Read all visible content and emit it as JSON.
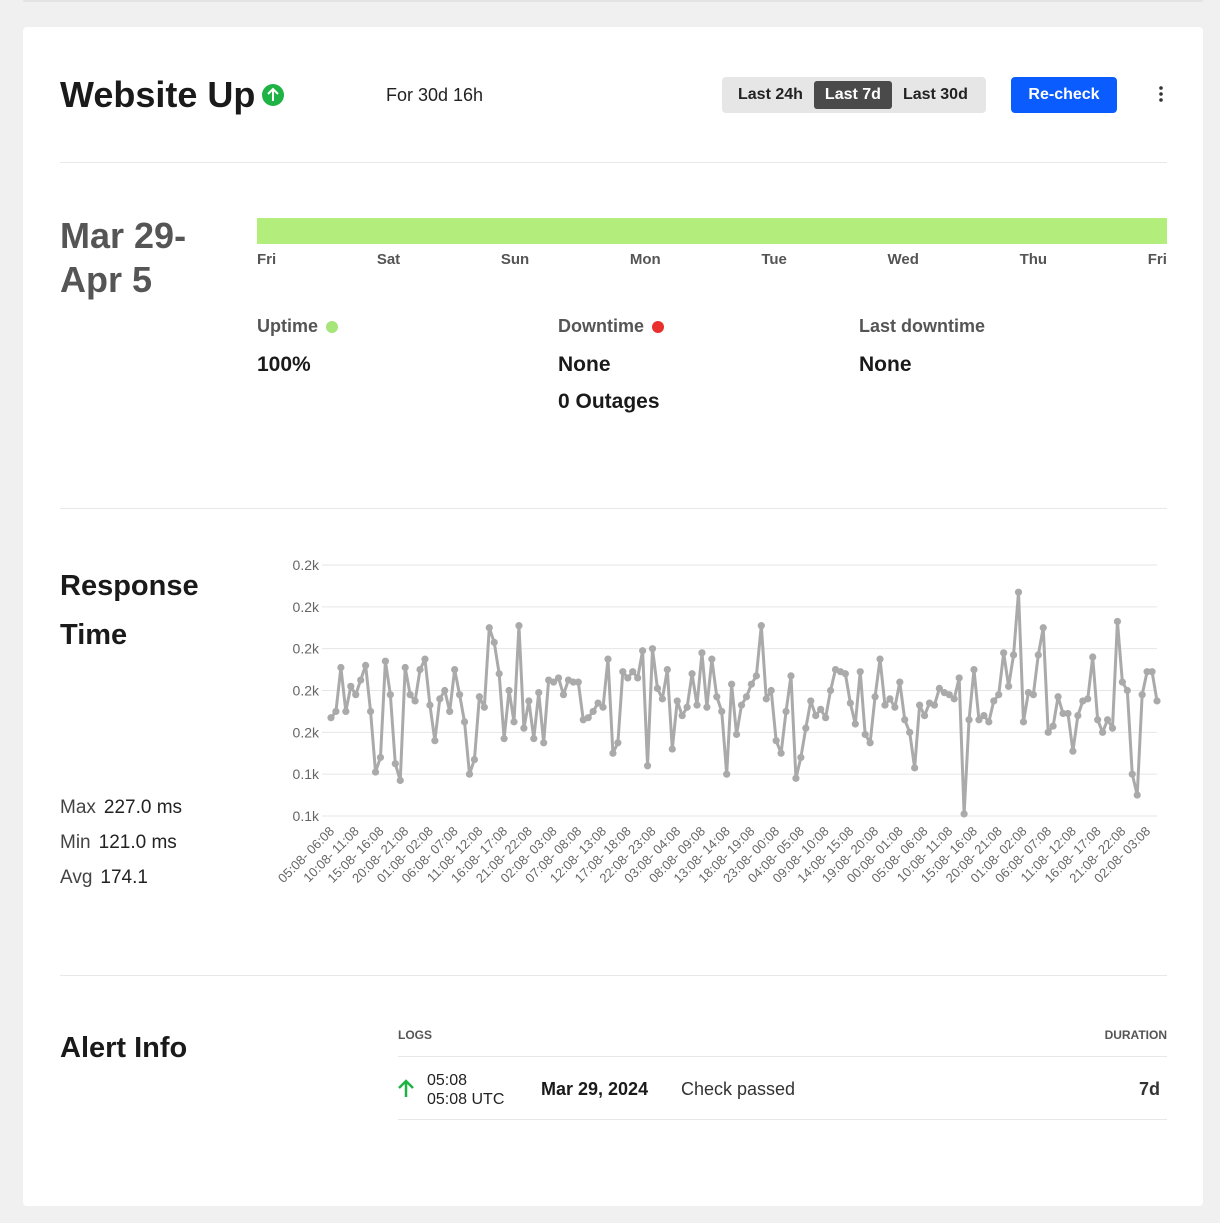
{
  "header": {
    "title": "Website Up",
    "status_for": "For 30d 16h",
    "ranges": [
      "Last 24h",
      "Last 7d",
      "Last 30d"
    ],
    "selected_range": 1,
    "button": "Re-check"
  },
  "uptime": {
    "date_range": [
      "Mar 29-",
      "Apr 5"
    ],
    "bar_color": "#b3ee7c",
    "days": [
      "Fri",
      "Sat",
      "Sun",
      "Mon",
      "Tue",
      "Wed",
      "Thu",
      "Fri"
    ],
    "stats": [
      {
        "label": "Uptime",
        "color": "#a6e57a",
        "values": [
          "100%"
        ]
      },
      {
        "label": "Downtime",
        "color": "#e8302d",
        "values": [
          "None",
          "0 Outages"
        ]
      },
      {
        "label": "Last downtime",
        "values": [
          "None"
        ]
      }
    ]
  },
  "response": {
    "title": [
      "Response",
      "Time"
    ],
    "summary": [
      {
        "label": "Max",
        "value": "227.0 ms"
      },
      {
        "label": "Min",
        "value": "121.0 ms"
      },
      {
        "label": "Avg",
        "value": "174.1"
      }
    ]
  },
  "chart_data": {
    "type": "line",
    "color": "#aaaaaa",
    "grid": true,
    "ylim": [
      120,
      240
    ],
    "yticks": [
      {
        "value": 120,
        "label": "0.1k"
      },
      {
        "value": 140,
        "label": "0.1k"
      },
      {
        "value": 160,
        "label": "0.2k"
      },
      {
        "value": 180,
        "label": "0.2k"
      },
      {
        "value": 200,
        "label": "0.2k"
      },
      {
        "value": 220,
        "label": "0.2k"
      },
      {
        "value": 240,
        "label": "0.2k"
      }
    ],
    "categories": [
      "05:08- 06:08",
      null,
      null,
      null,
      null,
      "10:08- 11:08",
      null,
      null,
      null,
      null,
      "15:08- 16:08",
      null,
      null,
      null,
      null,
      "20:08- 21:08",
      null,
      null,
      null,
      null,
      "01:08- 02:08",
      null,
      null,
      null,
      null,
      "06:08- 07:08",
      null,
      null,
      null,
      null,
      "11:08- 12:08",
      null,
      null,
      null,
      null,
      "16:08- 17:08",
      null,
      null,
      null,
      null,
      "21:08- 22:08",
      null,
      null,
      null,
      null,
      "02:08- 03:08",
      null,
      null,
      null,
      null,
      "07:08- 08:08",
      null,
      null,
      null,
      null,
      "12:08- 13:08",
      null,
      null,
      null,
      null,
      "17:08- 18:08",
      null,
      null,
      null,
      null,
      "22:08- 23:08",
      null,
      null,
      null,
      null,
      "03:08- 04:08",
      null,
      null,
      null,
      null,
      "08:08- 09:08",
      null,
      null,
      null,
      null,
      "13:08- 14:08",
      null,
      null,
      null,
      null,
      "18:08- 19:08",
      null,
      null,
      null,
      null,
      "23:08- 00:08",
      null,
      null,
      null,
      null,
      "04:08- 05:08",
      null,
      null,
      null,
      null,
      "09:08- 10:08",
      null,
      null,
      null,
      null,
      "14:08- 15:08",
      null,
      null,
      null,
      null,
      "19:08- 20:08",
      null,
      null,
      null,
      null,
      "00:08- 01:08",
      null,
      null,
      null,
      null,
      "05:08- 06:08",
      null,
      null,
      null,
      null,
      "10:08- 11:08",
      null,
      null,
      null,
      null,
      "15:08- 16:08",
      null,
      null,
      null,
      null,
      "20:08- 21:08",
      null,
      null,
      null,
      null,
      "01:08- 02:08",
      null,
      null,
      null,
      null,
      "06:08- 07:08",
      null,
      null,
      null,
      null,
      "11:08- 12:08",
      null,
      null,
      null,
      null,
      "16:08- 17:08",
      null,
      null,
      null,
      null,
      "21:08- 22:08",
      null,
      null,
      null,
      null,
      "02:08- 03:08",
      null,
      null
    ],
    "values": [
      167,
      170,
      191,
      170,
      182,
      178,
      185,
      192,
      170,
      141,
      148,
      194,
      178,
      145,
      137,
      191,
      178,
      175,
      190,
      195,
      173,
      156,
      176,
      180,
      170,
      190,
      178,
      165,
      140,
      147,
      177,
      172,
      210,
      203,
      188,
      157,
      180,
      165,
      211,
      162,
      175,
      157,
      179,
      155,
      185,
      184,
      186,
      178,
      185,
      184,
      184,
      166,
      167,
      170,
      174,
      172,
      195,
      150,
      155,
      189,
      186,
      189,
      186,
      199,
      144,
      200,
      181,
      176,
      190,
      152,
      175,
      168,
      172,
      188,
      173,
      198,
      172,
      195,
      177,
      170,
      140,
      183,
      159,
      173,
      177,
      183,
      187,
      211,
      176,
      180,
      156,
      150,
      170,
      187,
      138,
      148,
      162,
      175,
      168,
      171,
      167,
      180,
      190,
      189,
      188,
      174,
      164,
      189,
      159,
      155,
      177,
      195,
      173,
      176,
      172,
      184,
      166,
      160,
      143,
      173,
      168,
      174,
      173,
      181,
      179,
      178,
      176,
      186,
      121,
      166,
      190,
      166,
      168,
      165,
      175,
      178,
      198,
      182,
      197,
      227,
      165,
      179,
      178,
      197,
      210,
      160,
      163,
      177,
      169,
      169,
      151,
      168,
      175,
      176,
      196,
      166,
      160,
      166,
      162,
      213,
      184,
      180,
      140,
      130,
      178,
      189,
      189,
      175
    ]
  },
  "alerts": {
    "title": "Alert Info",
    "columns": [
      "LOGS",
      "DURATION"
    ],
    "rows": [
      {
        "time": "05:08",
        "time_utc": "05:08 UTC",
        "date": "Mar 29, 2024",
        "message": "Check passed",
        "duration": "7d"
      }
    ]
  }
}
